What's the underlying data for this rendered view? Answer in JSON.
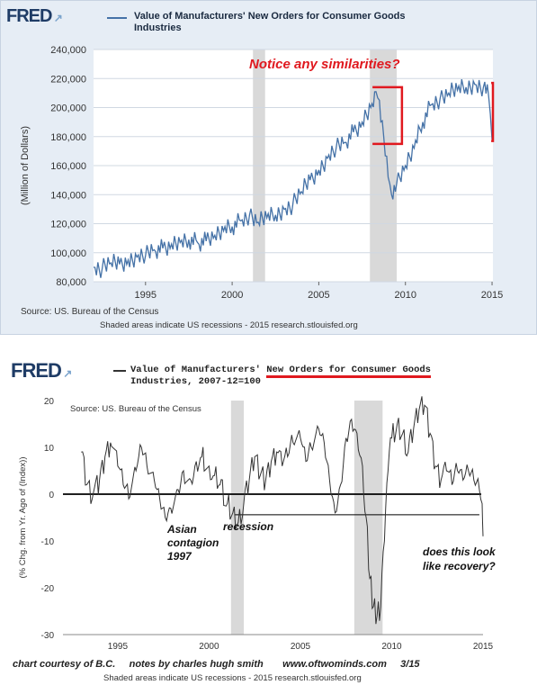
{
  "chart_data": [
    {
      "type": "line",
      "brand": "FRED",
      "title": "Value of Manufacturers' New Orders for Consumer Goods Industries",
      "title_line1": "Value of Manufacturers' New Orders for Consumer Goods",
      "title_line2": "Industries",
      "ylabel": "(Million of Dollars)",
      "ylim": [
        80000,
        240000
      ],
      "xlim": [
        1992.0,
        2015.05
      ],
      "y_ticks": [
        80000,
        100000,
        120000,
        140000,
        160000,
        180000,
        200000,
        220000,
        240000
      ],
      "y_tick_labels": [
        "80,000",
        "100,000",
        "120,000",
        "140,000",
        "160,000",
        "180,000",
        "200,000",
        "220,000",
        "240,000"
      ],
      "x_ticks": [
        1995,
        2000,
        2005,
        2010,
        2015
      ],
      "x_tick_labels": [
        "1995",
        "2000",
        "2005",
        "2010",
        "2015"
      ],
      "recessions": [
        [
          2001.2,
          2001.9
        ],
        [
          2007.95,
          2009.5
        ]
      ],
      "series": [
        {
          "name": "Value of Manufacturers' New Orders for Consumer Goods Industries",
          "color": "#4572a7",
          "points": [
            [
              1992.0,
              90000
            ],
            [
              1992.5,
              89000
            ],
            [
              1993.0,
              93000
            ],
            [
              1993.5,
              92000
            ],
            [
              1994.0,
              95000
            ],
            [
              1994.5,
              97000
            ],
            [
              1995.0,
              98000
            ],
            [
              1995.5,
              102000
            ],
            [
              1996.0,
              103000
            ],
            [
              1996.5,
              106000
            ],
            [
              1997.0,
              107000
            ],
            [
              1997.5,
              109000
            ],
            [
              1998.0,
              107000
            ],
            [
              1998.5,
              108000
            ],
            [
              1999.0,
              112000
            ],
            [
              1999.5,
              115000
            ],
            [
              2000.0,
              118000
            ],
            [
              2000.5,
              122000
            ],
            [
              2001.0,
              126000
            ],
            [
              2001.5,
              121000
            ],
            [
              2002.0,
              124000
            ],
            [
              2002.5,
              126000
            ],
            [
              2003.0,
              130000
            ],
            [
              2003.5,
              133000
            ],
            [
              2004.0,
              142000
            ],
            [
              2004.5,
              150000
            ],
            [
              2005.0,
              157000
            ],
            [
              2005.5,
              165000
            ],
            [
              2006.0,
              172000
            ],
            [
              2006.5,
              176000
            ],
            [
              2007.0,
              183000
            ],
            [
              2007.5,
              190000
            ],
            [
              2008.0,
              200000
            ],
            [
              2008.3,
              211000
            ],
            [
              2008.5,
              205000
            ],
            [
              2008.75,
              180000
            ],
            [
              2009.0,
              152000
            ],
            [
              2009.2,
              140000
            ],
            [
              2009.5,
              148000
            ],
            [
              2010.0,
              160000
            ],
            [
              2010.5,
              172000
            ],
            [
              2011.0,
              190000
            ],
            [
              2011.5,
              202000
            ],
            [
              2012.0,
              206000
            ],
            [
              2012.5,
              210000
            ],
            [
              2013.0,
              212000
            ],
            [
              2013.5,
              214000
            ],
            [
              2014.0,
              216000
            ],
            [
              2014.5,
              214000
            ],
            [
              2014.8,
              208000
            ],
            [
              2015.0,
              178000
            ]
          ]
        }
      ],
      "annotation": "Notice any similarities?",
      "source": "Source: US. Bureau of the Census",
      "footer": "Shaded areas indicate US recessions - 2015 research.stlouisfed.org"
    },
    {
      "type": "line",
      "brand": "FRED",
      "title": "Value of Manufacturers' New Orders for Consumer Goods Industries, 2007-12=100",
      "title_prefix": "Value of Manufacturers'",
      "title_highlight": "New Orders for Consumer Goods",
      "title_line2": "Industries, 2007-12=100",
      "ylabel": "(% Chg. from Yr. Ago of (Index))",
      "ylim": [
        -30,
        20
      ],
      "xlim": [
        1992.0,
        2015.0
      ],
      "y_ticks": [
        -30,
        -20,
        -10,
        0,
        10,
        20
      ],
      "y_tick_labels": [
        "-30",
        "-20",
        "-10",
        "0",
        "10",
        "20"
      ],
      "x_ticks": [
        1995,
        2000,
        2005,
        2010,
        2015
      ],
      "x_tick_labels": [
        "1995",
        "2000",
        "2005",
        "2010",
        "2015"
      ],
      "recessions": [
        [
          2001.2,
          2001.9
        ],
        [
          2007.95,
          2009.5
        ]
      ],
      "series": [
        {
          "name": "Value of Manufacturers' New Orders for Consumer Goods Industries, 2007-12=100",
          "color": "#333333",
          "points": [
            [
              1993.0,
              9
            ],
            [
              1993.3,
              2
            ],
            [
              1993.6,
              -1
            ],
            [
              1994.0,
              3
            ],
            [
              1994.3,
              8
            ],
            [
              1994.6,
              11
            ],
            [
              1995.0,
              6
            ],
            [
              1995.3,
              2
            ],
            [
              1995.6,
              -1
            ],
            [
              1996.0,
              5
            ],
            [
              1996.3,
              10
            ],
            [
              1996.6,
              6
            ],
            [
              1997.0,
              3
            ],
            [
              1997.3,
              -1
            ],
            [
              1997.6,
              -5
            ],
            [
              1997.9,
              -3
            ],
            [
              1998.3,
              1
            ],
            [
              1998.6,
              5
            ],
            [
              1999.0,
              3
            ],
            [
              1999.3,
              7
            ],
            [
              1999.6,
              8
            ],
            [
              2000.0,
              6
            ],
            [
              2000.3,
              4
            ],
            [
              2000.6,
              2
            ],
            [
              2001.0,
              -2
            ],
            [
              2001.3,
              -4
            ],
            [
              2001.6,
              -6
            ],
            [
              2001.9,
              -2
            ],
            [
              2002.2,
              3
            ],
            [
              2002.5,
              8
            ],
            [
              2002.8,
              4
            ],
            [
              2003.1,
              3
            ],
            [
              2003.4,
              7
            ],
            [
              2003.7,
              9
            ],
            [
              2004.0,
              6
            ],
            [
              2004.3,
              8
            ],
            [
              2004.6,
              11
            ],
            [
              2005.0,
              12
            ],
            [
              2005.3,
              7
            ],
            [
              2005.6,
              10
            ],
            [
              2006.0,
              14
            ],
            [
              2006.3,
              11
            ],
            [
              2006.6,
              3
            ],
            [
              2006.9,
              -4
            ],
            [
              2007.2,
              2
            ],
            [
              2007.5,
              12
            ],
            [
              2007.8,
              16
            ],
            [
              2008.1,
              13
            ],
            [
              2008.4,
              6
            ],
            [
              2008.6,
              -5
            ],
            [
              2008.8,
              -18
            ],
            [
              2009.0,
              -24
            ],
            [
              2009.2,
              -26
            ],
            [
              2009.4,
              -24
            ],
            [
              2009.6,
              -10
            ],
            [
              2009.8,
              5
            ],
            [
              2010.0,
              12
            ],
            [
              2010.3,
              15
            ],
            [
              2010.6,
              13
            ],
            [
              2010.9,
              9
            ],
            [
              2011.2,
              14
            ],
            [
              2011.5,
              18
            ],
            [
              2011.8,
              19
            ],
            [
              2012.1,
              13
            ],
            [
              2012.4,
              6
            ],
            [
              2012.7,
              3
            ],
            [
              2013.0,
              5
            ],
            [
              2013.3,
              2
            ],
            [
              2013.6,
              5
            ],
            [
              2013.9,
              3
            ],
            [
              2014.2,
              5
            ],
            [
              2014.5,
              3
            ],
            [
              2014.8,
              1
            ],
            [
              2014.95,
              -2
            ],
            [
              2015.0,
              -9
            ]
          ]
        }
      ],
      "source": "Source: US. Bureau of the Census",
      "footer": "Shaded areas indicate US recessions - 2015 research.stlouisfed.org",
      "annotations": {
        "asian_1": "Asian",
        "asian_2": "contagion",
        "asian_3": "1997",
        "recession": "recession",
        "question_1": "does this look",
        "question_2": "like recovery?"
      },
      "credits": {
        "a": "chart courtesy of B.C.",
        "b": "notes by charles hugh smith",
        "c": "www.oftwominds.com",
        "d": "3/15"
      }
    }
  ],
  "colors": {
    "highlight_red": "#e0191f",
    "fred_blue": "#1f3c66",
    "line_blue": "#4572a7",
    "recession_gray": "#d9d9d9"
  }
}
